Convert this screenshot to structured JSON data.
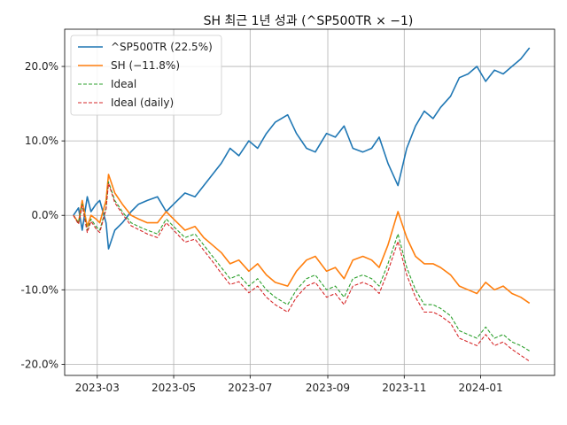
{
  "chart_data": {
    "type": "line",
    "title": "SH 최근 1년 성과 (^SP500TR × −1)",
    "xlabel": "",
    "ylabel": "",
    "xlim": [
      "2023-02-03",
      "2024-02-29"
    ],
    "ylim": [
      -21.5,
      25.0
    ],
    "grid": true,
    "legend_position": "top-left",
    "x_ticks": [
      "2023-03",
      "2023-05",
      "2023-07",
      "2023-09",
      "2023-11",
      "2024-01"
    ],
    "y_ticks": [
      "20.0%",
      "10.0%",
      "0.0%",
      "-10.0%",
      "-20.0%"
    ],
    "series": [
      {
        "name": "^SP500TR (22.5%)",
        "color": "#1f77b4",
        "style": "solid",
        "points": [
          [
            "2023-02-10",
            0.0
          ],
          [
            "2023-02-14",
            1.0
          ],
          [
            "2023-02-17",
            -2.0
          ],
          [
            "2023-02-21",
            2.5
          ],
          [
            "2023-02-24",
            0.5
          ],
          [
            "2023-02-28",
            1.5
          ],
          [
            "2023-03-03",
            2.0
          ],
          [
            "2023-03-08",
            -1.0
          ],
          [
            "2023-03-10",
            -4.5
          ],
          [
            "2023-03-15",
            -2.0
          ],
          [
            "2023-03-21",
            -1.0
          ],
          [
            "2023-03-28",
            0.5
          ],
          [
            "2023-04-03",
            1.5
          ],
          [
            "2023-04-10",
            2.0
          ],
          [
            "2023-04-18",
            2.5
          ],
          [
            "2023-04-25",
            0.5
          ],
          [
            "2023-05-01",
            1.5
          ],
          [
            "2023-05-10",
            3.0
          ],
          [
            "2023-05-18",
            2.5
          ],
          [
            "2023-05-25",
            4.0
          ],
          [
            "2023-06-01",
            5.5
          ],
          [
            "2023-06-08",
            7.0
          ],
          [
            "2023-06-15",
            9.0
          ],
          [
            "2023-06-22",
            8.0
          ],
          [
            "2023-06-30",
            10.0
          ],
          [
            "2023-07-07",
            9.0
          ],
          [
            "2023-07-14",
            11.0
          ],
          [
            "2023-07-21",
            12.5
          ],
          [
            "2023-07-31",
            13.5
          ],
          [
            "2023-08-07",
            11.0
          ],
          [
            "2023-08-15",
            9.0
          ],
          [
            "2023-08-22",
            8.5
          ],
          [
            "2023-08-31",
            11.0
          ],
          [
            "2023-09-07",
            10.5
          ],
          [
            "2023-09-14",
            12.0
          ],
          [
            "2023-09-21",
            9.0
          ],
          [
            "2023-09-29",
            8.5
          ],
          [
            "2023-10-06",
            9.0
          ],
          [
            "2023-10-12",
            10.5
          ],
          [
            "2023-10-19",
            7.0
          ],
          [
            "2023-10-27",
            4.0
          ],
          [
            "2023-11-03",
            9.0
          ],
          [
            "2023-11-10",
            12.0
          ],
          [
            "2023-11-17",
            14.0
          ],
          [
            "2023-11-24",
            13.0
          ],
          [
            "2023-11-30",
            14.5
          ],
          [
            "2023-12-08",
            16.0
          ],
          [
            "2023-12-15",
            18.5
          ],
          [
            "2023-12-22",
            19.0
          ],
          [
            "2023-12-29",
            20.0
          ],
          [
            "2024-01-05",
            18.0
          ],
          [
            "2024-01-12",
            19.5
          ],
          [
            "2024-01-19",
            19.0
          ],
          [
            "2024-01-26",
            20.0
          ],
          [
            "2024-02-02",
            21.0
          ],
          [
            "2024-02-09",
            22.5
          ]
        ]
      },
      {
        "name": "SH (−11.8%)",
        "color": "#ff7f0e",
        "style": "solid",
        "points": [
          [
            "2023-02-10",
            0.0
          ],
          [
            "2023-02-14",
            -1.0
          ],
          [
            "2023-02-17",
            2.0
          ],
          [
            "2023-02-21",
            -1.5
          ],
          [
            "2023-02-24",
            0.0
          ],
          [
            "2023-02-28",
            -0.5
          ],
          [
            "2023-03-03",
            -1.0
          ],
          [
            "2023-03-08",
            2.0
          ],
          [
            "2023-03-10",
            5.5
          ],
          [
            "2023-03-15",
            3.0
          ],
          [
            "2023-03-21",
            1.5
          ],
          [
            "2023-03-28",
            0.0
          ],
          [
            "2023-04-03",
            -0.5
          ],
          [
            "2023-04-10",
            -1.0
          ],
          [
            "2023-04-18",
            -1.0
          ],
          [
            "2023-04-25",
            0.5
          ],
          [
            "2023-05-01",
            -0.5
          ],
          [
            "2023-05-10",
            -2.0
          ],
          [
            "2023-05-18",
            -1.5
          ],
          [
            "2023-05-25",
            -3.0
          ],
          [
            "2023-06-01",
            -4.0
          ],
          [
            "2023-06-08",
            -5.0
          ],
          [
            "2023-06-15",
            -6.5
          ],
          [
            "2023-06-22",
            -6.0
          ],
          [
            "2023-06-30",
            -7.5
          ],
          [
            "2023-07-07",
            -6.5
          ],
          [
            "2023-07-14",
            -8.0
          ],
          [
            "2023-07-21",
            -9.0
          ],
          [
            "2023-07-31",
            -9.5
          ],
          [
            "2023-08-07",
            -7.5
          ],
          [
            "2023-08-15",
            -6.0
          ],
          [
            "2023-08-22",
            -5.5
          ],
          [
            "2023-08-31",
            -7.5
          ],
          [
            "2023-09-07",
            -7.0
          ],
          [
            "2023-09-14",
            -8.5
          ],
          [
            "2023-09-21",
            -6.0
          ],
          [
            "2023-09-29",
            -5.5
          ],
          [
            "2023-10-06",
            -6.0
          ],
          [
            "2023-10-12",
            -7.0
          ],
          [
            "2023-10-19",
            -4.0
          ],
          [
            "2023-10-27",
            0.5
          ],
          [
            "2023-11-03",
            -3.0
          ],
          [
            "2023-11-10",
            -5.5
          ],
          [
            "2023-11-17",
            -6.5
          ],
          [
            "2023-11-24",
            -6.5
          ],
          [
            "2023-11-30",
            -7.0
          ],
          [
            "2023-12-08",
            -8.0
          ],
          [
            "2023-12-15",
            -9.5
          ],
          [
            "2023-12-22",
            -10.0
          ],
          [
            "2023-12-29",
            -10.5
          ],
          [
            "2024-01-05",
            -9.0
          ],
          [
            "2024-01-12",
            -10.0
          ],
          [
            "2024-01-19",
            -9.5
          ],
          [
            "2024-01-26",
            -10.5
          ],
          [
            "2024-02-02",
            -11.0
          ],
          [
            "2024-02-09",
            -11.8
          ]
        ]
      },
      {
        "name": "Ideal",
        "color": "#2ca02c",
        "style": "dashed",
        "points": [
          [
            "2023-02-10",
            0.0
          ],
          [
            "2023-02-14",
            -1.0
          ],
          [
            "2023-02-17",
            1.5
          ],
          [
            "2023-02-21",
            -2.0
          ],
          [
            "2023-02-24",
            -0.5
          ],
          [
            "2023-02-28",
            -1.5
          ],
          [
            "2023-03-03",
            -2.0
          ],
          [
            "2023-03-08",
            1.0
          ],
          [
            "2023-03-10",
            4.5
          ],
          [
            "2023-03-15",
            2.0
          ],
          [
            "2023-03-21",
            0.5
          ],
          [
            "2023-03-28",
            -1.0
          ],
          [
            "2023-04-03",
            -1.5
          ],
          [
            "2023-04-10",
            -2.0
          ],
          [
            "2023-04-18",
            -2.5
          ],
          [
            "2023-04-25",
            -0.5
          ],
          [
            "2023-05-01",
            -1.5
          ],
          [
            "2023-05-10",
            -3.0
          ],
          [
            "2023-05-18",
            -2.5
          ],
          [
            "2023-05-25",
            -4.0
          ],
          [
            "2023-06-01",
            -5.5
          ],
          [
            "2023-06-08",
            -7.0
          ],
          [
            "2023-06-15",
            -8.5
          ],
          [
            "2023-06-22",
            -8.0
          ],
          [
            "2023-06-30",
            -9.5
          ],
          [
            "2023-07-07",
            -8.5
          ],
          [
            "2023-07-14",
            -10.0
          ],
          [
            "2023-07-21",
            -11.0
          ],
          [
            "2023-07-31",
            -12.0
          ],
          [
            "2023-08-07",
            -10.0
          ],
          [
            "2023-08-15",
            -8.5
          ],
          [
            "2023-08-22",
            -8.0
          ],
          [
            "2023-08-31",
            -10.0
          ],
          [
            "2023-09-07",
            -9.5
          ],
          [
            "2023-09-14",
            -11.0
          ],
          [
            "2023-09-21",
            -8.5
          ],
          [
            "2023-09-29",
            -8.0
          ],
          [
            "2023-10-06",
            -8.5
          ],
          [
            "2023-10-12",
            -9.5
          ],
          [
            "2023-10-19",
            -6.5
          ],
          [
            "2023-10-27",
            -2.5
          ],
          [
            "2023-11-03",
            -7.0
          ],
          [
            "2023-11-10",
            -10.0
          ],
          [
            "2023-11-17",
            -12.0
          ],
          [
            "2023-11-24",
            -12.0
          ],
          [
            "2023-11-30",
            -12.5
          ],
          [
            "2023-12-08",
            -13.5
          ],
          [
            "2023-12-15",
            -15.5
          ],
          [
            "2023-12-22",
            -16.0
          ],
          [
            "2023-12-29",
            -16.5
          ],
          [
            "2024-01-05",
            -15.0
          ],
          [
            "2024-01-12",
            -16.5
          ],
          [
            "2024-01-19",
            -16.0
          ],
          [
            "2024-01-26",
            -17.0
          ],
          [
            "2024-02-02",
            -17.5
          ],
          [
            "2024-02-09",
            -18.2
          ]
        ]
      },
      {
        "name": "Ideal (daily)",
        "color": "#d62728",
        "style": "dashed",
        "points": [
          [
            "2023-02-10",
            0.0
          ],
          [
            "2023-02-14",
            -1.2
          ],
          [
            "2023-02-17",
            1.3
          ],
          [
            "2023-02-21",
            -2.3
          ],
          [
            "2023-02-24",
            -0.8
          ],
          [
            "2023-02-28",
            -1.8
          ],
          [
            "2023-03-03",
            -2.3
          ],
          [
            "2023-03-08",
            0.8
          ],
          [
            "2023-03-10",
            4.3
          ],
          [
            "2023-03-15",
            1.7
          ],
          [
            "2023-03-21",
            0.2
          ],
          [
            "2023-03-28",
            -1.4
          ],
          [
            "2023-04-03",
            -1.9
          ],
          [
            "2023-04-10",
            -2.5
          ],
          [
            "2023-04-18",
            -3.0
          ],
          [
            "2023-04-25",
            -1.0
          ],
          [
            "2023-05-01",
            -2.0
          ],
          [
            "2023-05-10",
            -3.6
          ],
          [
            "2023-05-18",
            -3.2
          ],
          [
            "2023-05-25",
            -4.7
          ],
          [
            "2023-06-01",
            -6.2
          ],
          [
            "2023-06-08",
            -7.8
          ],
          [
            "2023-06-15",
            -9.3
          ],
          [
            "2023-06-22",
            -8.9
          ],
          [
            "2023-06-30",
            -10.4
          ],
          [
            "2023-07-07",
            -9.5
          ],
          [
            "2023-07-14",
            -11.0
          ],
          [
            "2023-07-21",
            -12.0
          ],
          [
            "2023-07-31",
            -13.0
          ],
          [
            "2023-08-07",
            -11.0
          ],
          [
            "2023-08-15",
            -9.5
          ],
          [
            "2023-08-22",
            -9.0
          ],
          [
            "2023-08-31",
            -11.0
          ],
          [
            "2023-09-07",
            -10.5
          ],
          [
            "2023-09-14",
            -12.0
          ],
          [
            "2023-09-21",
            -9.5
          ],
          [
            "2023-09-29",
            -9.0
          ],
          [
            "2023-10-06",
            -9.5
          ],
          [
            "2023-10-12",
            -10.5
          ],
          [
            "2023-10-19",
            -7.5
          ],
          [
            "2023-10-27",
            -3.5
          ],
          [
            "2023-11-03",
            -8.0
          ],
          [
            "2023-11-10",
            -11.0
          ],
          [
            "2023-11-17",
            -13.0
          ],
          [
            "2023-11-24",
            -13.0
          ],
          [
            "2023-11-30",
            -13.5
          ],
          [
            "2023-12-08",
            -14.5
          ],
          [
            "2023-12-15",
            -16.5
          ],
          [
            "2023-12-22",
            -17.0
          ],
          [
            "2023-12-29",
            -17.5
          ],
          [
            "2024-01-05",
            -16.0
          ],
          [
            "2024-01-12",
            -17.5
          ],
          [
            "2024-01-19",
            -17.0
          ],
          [
            "2024-01-26",
            -18.0
          ],
          [
            "2024-02-02",
            -18.8
          ],
          [
            "2024-02-09",
            -19.6
          ]
        ]
      }
    ]
  }
}
